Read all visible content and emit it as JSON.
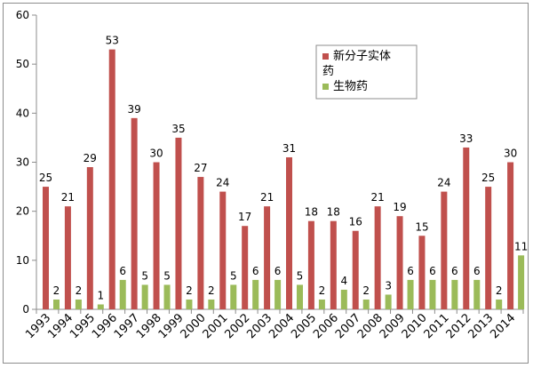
{
  "chart_data": {
    "type": "bar",
    "title": "",
    "xlabel": "",
    "ylabel": "",
    "ylim": [
      0,
      60
    ],
    "yticks": [
      0,
      10,
      20,
      30,
      40,
      50,
      60
    ],
    "grid": false,
    "legend_position": "top-right",
    "categories": [
      "1993",
      "1994",
      "1995",
      "1996",
      "1997",
      "1998",
      "1999",
      "2000",
      "2001",
      "2002",
      "2003",
      "2004",
      "2005",
      "2006",
      "2007",
      "2008",
      "2009",
      "2010",
      "2011",
      "2012",
      "2013",
      "2014"
    ],
    "series": [
      {
        "name": "新分子实体药",
        "color": "#c0504d",
        "values": [
          25,
          21,
          29,
          53,
          39,
          30,
          35,
          27,
          24,
          17,
          21,
          31,
          18,
          18,
          16,
          21,
          19,
          15,
          24,
          33,
          25,
          30
        ]
      },
      {
        "name": "生物药",
        "color": "#9bbb59",
        "values": [
          2,
          2,
          1,
          6,
          5,
          5,
          2,
          2,
          5,
          6,
          6,
          5,
          2,
          4,
          2,
          3,
          6,
          6,
          6,
          6,
          2,
          11
        ]
      }
    ],
    "legend_labels": {
      "series_0_line1": "新分子实体",
      "series_0_line2": "药",
      "series_1": "生物药"
    }
  }
}
